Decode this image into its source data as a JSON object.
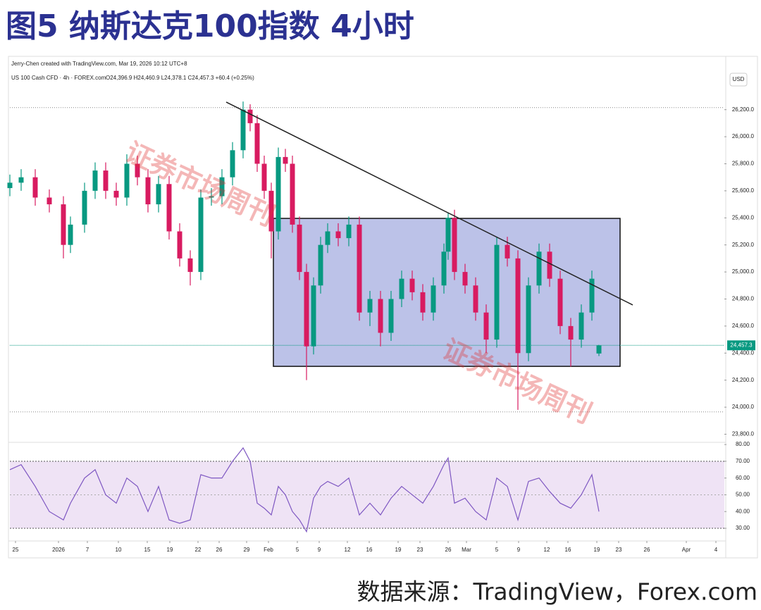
{
  "chart_data": [
    {
      "type": "candlestick",
      "title": "图5 纳斯达克100指数 4小时",
      "credit": "Jerry-Chen created with TradingView.com, Mar 19, 2026 10:12 UTC+8",
      "symbol": "US 100 Cash CFD · 4h · FOREX.com",
      "ohlc_label": "O24,396.9 H24,460.9 L24,378.1 C24,457.3 +60.4 (+0.25%)",
      "currency": "USD",
      "watermark": "证券市场周刊",
      "up_color": "#089981",
      "down_color": "#d81b60",
      "box_color": "#8f9ad9",
      "trend_color": "#222222",
      "x": [
        14,
        30,
        50,
        70,
        90,
        100,
        120,
        135,
        150,
        165,
        180,
        195,
        210,
        225,
        240,
        255,
        270,
        285,
        300,
        315,
        330,
        345,
        355,
        365,
        375,
        385,
        395,
        405,
        415,
        425,
        435,
        445,
        455,
        465,
        480,
        495,
        510,
        525,
        540,
        555,
        570,
        585,
        600,
        615,
        630,
        636,
        645,
        660,
        675,
        690,
        705,
        720,
        735,
        750,
        765,
        780,
        795,
        810,
        825,
        840,
        850
      ],
      "open": [
        25620,
        25660,
        25700,
        25550,
        25500,
        25200,
        25350,
        25600,
        25750,
        25600,
        25550,
        25800,
        25700,
        25500,
        25650,
        25300,
        25100,
        25000,
        25550,
        25560,
        25700,
        25900,
        26200,
        26100,
        25800,
        25600,
        25300,
        25850,
        25800,
        25350,
        25000,
        24450,
        24900,
        25200,
        25300,
        25250,
        25350,
        24700,
        24800,
        24550,
        24800,
        24950,
        24850,
        24700,
        24900,
        25150,
        25400,
        25000,
        24900,
        24700,
        24500,
        25200,
        25100,
        24400,
        24900,
        25150,
        24950,
        24600,
        24500,
        24700,
        24396.9
      ],
      "high": [
        25720,
        25760,
        25760,
        25610,
        25560,
        25410,
        25660,
        25810,
        25810,
        25660,
        25870,
        25860,
        25760,
        25710,
        25710,
        25360,
        25160,
        25610,
        25620,
        25760,
        25960,
        26260,
        26240,
        26160,
        25860,
        25660,
        25920,
        25910,
        25860,
        25410,
        25060,
        24960,
        25260,
        25360,
        25360,
        25410,
        25410,
        24860,
        24860,
        24860,
        25010,
        25010,
        24910,
        24960,
        25210,
        25440,
        25460,
        25060,
        24960,
        24760,
        25260,
        25260,
        25160,
        24960,
        25210,
        25210,
        25010,
        24660,
        24760,
        25010,
        24460.9
      ],
      "low": [
        25560,
        25600,
        25490,
        25440,
        25100,
        25140,
        25290,
        25540,
        25540,
        25490,
        25490,
        25640,
        25440,
        25440,
        25240,
        25040,
        24900,
        24940,
        25490,
        25500,
        25640,
        25840,
        26040,
        25740,
        25540,
        25100,
        25240,
        25740,
        25290,
        24940,
        24200,
        24390,
        24840,
        25140,
        25190,
        25190,
        24640,
        24600,
        24450,
        24490,
        24740,
        24790,
        24640,
        24640,
        24840,
        25090,
        24940,
        24840,
        24640,
        24400,
        24440,
        25040,
        23980,
        24340,
        24840,
        24890,
        24540,
        24300,
        24440,
        24640,
        24378.1
      ],
      "close": [
        25660,
        25700,
        25550,
        25500,
        25200,
        25350,
        25600,
        25750,
        25600,
        25550,
        25800,
        25700,
        25500,
        25650,
        25300,
        25100,
        25000,
        25550,
        25560,
        25700,
        25900,
        26200,
        26100,
        25800,
        25600,
        25300,
        25850,
        25800,
        25350,
        25000,
        24450,
        24900,
        25200,
        25300,
        25250,
        25350,
        24700,
        24800,
        24550,
        24800,
        24950,
        24850,
        24700,
        24900,
        25150,
        25400,
        25000,
        24900,
        24700,
        24500,
        25200,
        25100,
        24400,
        24900,
        25150,
        24950,
        24600,
        24500,
        24700,
        24950,
        24457.3
      ],
      "trendline": {
        "x": [
          321,
          898
        ],
        "y": [
          26256,
          24756
        ]
      },
      "range_box": {
        "x": [
          388,
          880
        ],
        "y": [
          24302,
          25396
        ]
      },
      "levels": [
        26215,
        23965
      ],
      "last_price": {
        "value": 24457.3,
        "label": "24,457.3"
      },
      "xlim": [
        14,
        1028
      ],
      "ylim": [
        23740,
        26490
      ],
      "yticks": [
        {
          "value": 23800,
          "label": "23,800.0"
        },
        {
          "value": 24000,
          "label": "24,000.0"
        },
        {
          "value": 24200,
          "label": "24,200.0"
        },
        {
          "value": 24400,
          "label": "24,400.0"
        },
        {
          "value": 24600,
          "label": "24,600.0"
        },
        {
          "value": 24800,
          "label": "24,800.0"
        },
        {
          "value": 25000,
          "label": "25,000.0"
        },
        {
          "value": 25200,
          "label": "25,200.0"
        },
        {
          "value": 25400,
          "label": "25,400.0"
        },
        {
          "value": 25600,
          "label": "25,600.0"
        },
        {
          "value": 25800,
          "label": "25,800.0"
        },
        {
          "value": 26000,
          "label": "26,000.0"
        },
        {
          "value": 26200,
          "label": "26,200.0"
        }
      ],
      "grid": false
    },
    {
      "type": "line",
      "color": "#7e57c2",
      "band_color": "#efe3f5",
      "x": [
        14,
        30,
        50,
        70,
        90,
        100,
        120,
        135,
        150,
        165,
        180,
        195,
        210,
        225,
        240,
        255,
        270,
        285,
        300,
        315,
        330,
        345,
        355,
        365,
        375,
        385,
        395,
        405,
        415,
        425,
        435,
        445,
        455,
        465,
        480,
        495,
        510,
        525,
        540,
        555,
        570,
        585,
        600,
        615,
        630,
        636,
        645,
        660,
        675,
        690,
        705,
        720,
        735,
        750,
        765,
        780,
        795,
        810,
        825,
        840,
        850
      ],
      "values": [
        65,
        68,
        55,
        40,
        35,
        45,
        60,
        65,
        50,
        45,
        60,
        55,
        40,
        55,
        35,
        33,
        35,
        62,
        60,
        60,
        70,
        78,
        70,
        45,
        42,
        38,
        55,
        50,
        40,
        35,
        28,
        48,
        55,
        58,
        55,
        60,
        38,
        45,
        38,
        48,
        55,
        50,
        45,
        55,
        68,
        72,
        45,
        48,
        40,
        35,
        60,
        55,
        35,
        58,
        60,
        52,
        45,
        42,
        50,
        62,
        40
      ],
      "band": [
        30,
        70
      ],
      "midline": 50,
      "xlim": [
        14,
        1028
      ],
      "ylim": [
        23.7,
        81.3
      ],
      "yticks": [
        {
          "value": 30,
          "label": "30.00"
        },
        {
          "value": 40,
          "label": "40.00"
        },
        {
          "value": 50,
          "label": "50.00"
        },
        {
          "value": 60,
          "label": "60.00"
        },
        {
          "value": 70,
          "label": "70.00"
        },
        {
          "value": 80,
          "label": "80.00"
        }
      ],
      "xticks": [
        {
          "value": 22,
          "label": "25"
        },
        {
          "value": 83,
          "label": "2026"
        },
        {
          "value": 124,
          "label": "7"
        },
        {
          "value": 168,
          "label": "10"
        },
        {
          "value": 209,
          "label": "15"
        },
        {
          "value": 241,
          "label": "19"
        },
        {
          "value": 281,
          "label": "22"
        },
        {
          "value": 311,
          "label": "26"
        },
        {
          "value": 350,
          "label": "29"
        },
        {
          "value": 381,
          "label": "Feb"
        },
        {
          "value": 422,
          "label": "5"
        },
        {
          "value": 453,
          "label": "9"
        },
        {
          "value": 493,
          "label": "12"
        },
        {
          "value": 524,
          "label": "16"
        },
        {
          "value": 565,
          "label": "19"
        },
        {
          "value": 596,
          "label": "23"
        },
        {
          "value": 636,
          "label": "26"
        },
        {
          "value": 662,
          "label": "Mar"
        },
        {
          "value": 705,
          "label": "5"
        },
        {
          "value": 736,
          "label": "9"
        },
        {
          "value": 776,
          "label": "12"
        },
        {
          "value": 806,
          "label": "16"
        },
        {
          "value": 847,
          "label": "19"
        },
        {
          "value": 878,
          "label": "23"
        },
        {
          "value": 918,
          "label": "26"
        },
        {
          "value": 974,
          "label": "Apr"
        },
        {
          "value": 1016,
          "label": "4"
        }
      ]
    }
  ],
  "source": "数据来源：TradingView，Forex.com"
}
